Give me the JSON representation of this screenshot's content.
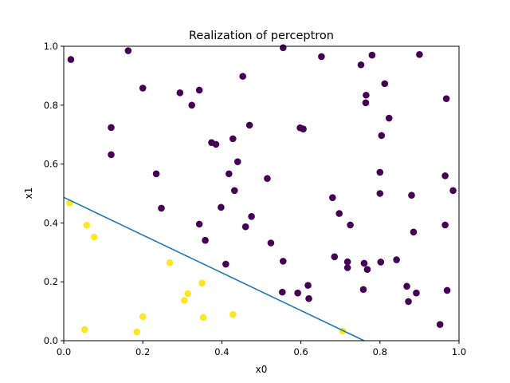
{
  "chart_data": {
    "type": "scatter",
    "title": "Realization of perceptron",
    "xlabel": "x0",
    "ylabel": "x1",
    "xlim": [
      0,
      1
    ],
    "ylim": [
      0,
      1
    ],
    "xticks": [
      "0.0",
      "0.2",
      "0.4",
      "0.6",
      "0.8",
      "1.0"
    ],
    "yticks": [
      "0.0",
      "0.2",
      "0.4",
      "0.6",
      "0.8",
      "1.0"
    ],
    "colors": {
      "class0": "#440154",
      "class1": "#fde725",
      "line": "#1f77b4"
    },
    "decision_line": {
      "x": [
        0.0,
        0.76
      ],
      "y": [
        0.487,
        0.0
      ]
    },
    "series": [
      {
        "name": "class0",
        "points": [
          [
            0.018,
            0.955
          ],
          [
            0.163,
            0.985
          ],
          [
            0.555,
            0.995
          ],
          [
            0.652,
            0.965
          ],
          [
            0.78,
            0.97
          ],
          [
            0.9,
            0.972
          ],
          [
            0.752,
            0.937
          ],
          [
            0.2,
            0.858
          ],
          [
            0.453,
            0.898
          ],
          [
            0.812,
            0.873
          ],
          [
            0.294,
            0.842
          ],
          [
            0.343,
            0.851
          ],
          [
            0.324,
            0.8
          ],
          [
            0.765,
            0.834
          ],
          [
            0.764,
            0.808
          ],
          [
            0.968,
            0.822
          ],
          [
            0.12,
            0.724
          ],
          [
            0.47,
            0.732
          ],
          [
            0.598,
            0.723
          ],
          [
            0.606,
            0.719
          ],
          [
            0.823,
            0.756
          ],
          [
            0.428,
            0.686
          ],
          [
            0.374,
            0.673
          ],
          [
            0.385,
            0.667
          ],
          [
            0.804,
            0.697
          ],
          [
            0.12,
            0.632
          ],
          [
            0.44,
            0.608
          ],
          [
            0.234,
            0.567
          ],
          [
            0.418,
            0.567
          ],
          [
            0.515,
            0.551
          ],
          [
            0.8,
            0.572
          ],
          [
            0.965,
            0.56
          ],
          [
            0.432,
            0.51
          ],
          [
            0.68,
            0.486
          ],
          [
            0.8,
            0.5
          ],
          [
            0.88,
            0.494
          ],
          [
            0.985,
            0.51
          ],
          [
            0.247,
            0.45
          ],
          [
            0.398,
            0.453
          ],
          [
            0.697,
            0.432
          ],
          [
            0.343,
            0.396
          ],
          [
            0.475,
            0.422
          ],
          [
            0.46,
            0.387
          ],
          [
            0.725,
            0.393
          ],
          [
            0.965,
            0.393
          ],
          [
            0.885,
            0.369
          ],
          [
            0.358,
            0.341
          ],
          [
            0.524,
            0.332
          ],
          [
            0.41,
            0.26
          ],
          [
            0.555,
            0.27
          ],
          [
            0.685,
            0.285
          ],
          [
            0.718,
            0.268
          ],
          [
            0.718,
            0.248
          ],
          [
            0.76,
            0.263
          ],
          [
            0.768,
            0.242
          ],
          [
            0.802,
            0.267
          ],
          [
            0.842,
            0.275
          ],
          [
            0.618,
            0.188
          ],
          [
            0.553,
            0.165
          ],
          [
            0.592,
            0.162
          ],
          [
            0.62,
            0.143
          ],
          [
            0.758,
            0.174
          ],
          [
            0.868,
            0.185
          ],
          [
            0.872,
            0.133
          ],
          [
            0.892,
            0.162
          ],
          [
            0.97,
            0.171
          ],
          [
            0.952,
            0.055
          ]
        ]
      },
      {
        "name": "class1",
        "points": [
          [
            0.015,
            0.468
          ],
          [
            0.058,
            0.392
          ],
          [
            0.077,
            0.352
          ],
          [
            0.268,
            0.265
          ],
          [
            0.35,
            0.196
          ],
          [
            0.314,
            0.16
          ],
          [
            0.305,
            0.137
          ],
          [
            0.2,
            0.082
          ],
          [
            0.353,
            0.079
          ],
          [
            0.428,
            0.089
          ],
          [
            0.053,
            0.038
          ],
          [
            0.185,
            0.03
          ],
          [
            0.706,
            0.033
          ]
        ]
      }
    ]
  }
}
